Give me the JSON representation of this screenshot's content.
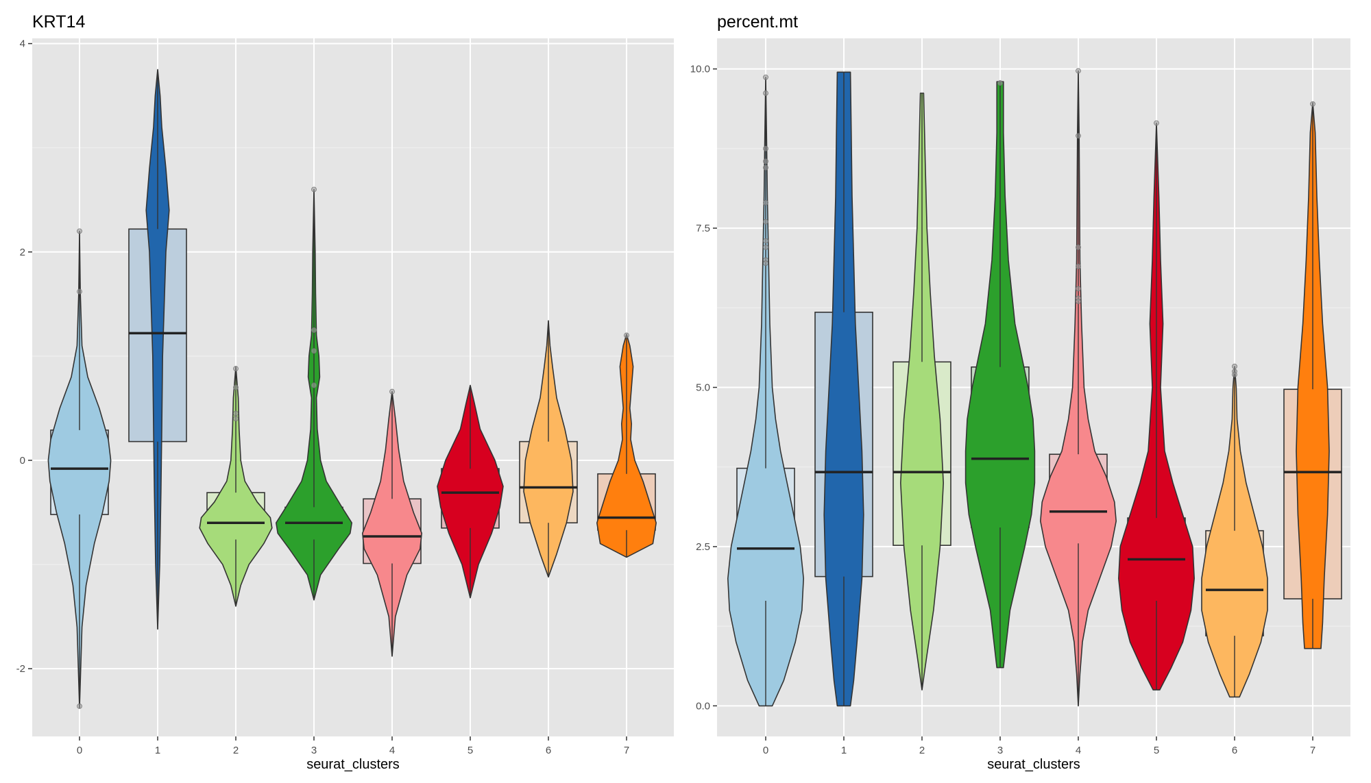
{
  "chart_data": [
    {
      "type": "violin",
      "title": "KRT14",
      "xlabel": "seurat_clusters",
      "ylabel": "",
      "categories": [
        "0",
        "1",
        "2",
        "3",
        "4",
        "5",
        "6",
        "7"
      ],
      "ylim": [
        -2.65,
        4.05
      ],
      "yticks": [
        -2,
        0,
        2,
        4
      ],
      "ytick_labels": [
        "-2",
        "0",
        "2",
        "4"
      ],
      "grid": true,
      "colors": [
        "#9ECAE1",
        "#2166AC",
        "#A6DB7A",
        "#2CA02C",
        "#F7888C",
        "#D7001F",
        "#FDB75F",
        "#FF7F0E"
      ],
      "box_fill_colors": [
        "#D6E3EC",
        "#BCCEDD",
        "#D9EAC9",
        "#C2D9C2",
        "#EAC4C6",
        "#E6B6BB",
        "#EDD8C2",
        "#EDCDB9"
      ],
      "boxes": [
        {
          "q1": -0.52,
          "median": -0.08,
          "q3": 0.29
        },
        {
          "q1": 0.18,
          "median": 1.22,
          "q3": 2.22
        },
        {
          "q1": -0.76,
          "median": -0.6,
          "q3": -0.31
        },
        {
          "q1": -0.76,
          "median": -0.6,
          "q3": -0.45
        },
        {
          "q1": -0.99,
          "median": -0.73,
          "q3": -0.37
        },
        {
          "q1": -0.65,
          "median": -0.31,
          "q3": -0.08
        },
        {
          "q1": -0.6,
          "median": -0.26,
          "q3": 0.18
        },
        {
          "q1": -0.67,
          "median": -0.55,
          "q3": -0.13
        }
      ],
      "violins": [
        {
          "y": [
            -2.38,
            -1.6,
            -1.2,
            -0.8,
            -0.5,
            -0.2,
            0.0,
            0.2,
            0.5,
            0.8,
            1.1,
            1.6,
            2.2
          ],
          "w": [
            0.0,
            0.03,
            0.08,
            0.18,
            0.28,
            0.36,
            0.38,
            0.35,
            0.24,
            0.1,
            0.03,
            0.01,
            0.0
          ]
        },
        {
          "y": [
            -1.62,
            -1.0,
            -0.3,
            0.3,
            1.0,
            1.5,
            2.0,
            2.4,
            2.8,
            3.2,
            3.5,
            3.75
          ],
          "w": [
            0.0,
            0.025,
            0.04,
            0.05,
            0.06,
            0.08,
            0.1,
            0.14,
            0.1,
            0.05,
            0.03,
            0.0
          ]
        },
        {
          "y": [
            -1.4,
            -1.2,
            -1.0,
            -0.8,
            -0.65,
            -0.55,
            -0.4,
            -0.2,
            0.0,
            0.3,
            0.6,
            0.9
          ],
          "w": [
            0.0,
            0.06,
            0.16,
            0.34,
            0.44,
            0.42,
            0.26,
            0.11,
            0.06,
            0.04,
            0.03,
            0.0
          ]
        },
        {
          "y": [
            -1.34,
            -1.1,
            -0.85,
            -0.7,
            -0.6,
            -0.45,
            -0.2,
            0.0,
            0.3,
            0.6,
            0.8,
            1.0,
            1.2,
            1.6,
            2.0,
            2.6
          ],
          "w": [
            0.0,
            0.08,
            0.3,
            0.44,
            0.46,
            0.34,
            0.15,
            0.08,
            0.04,
            0.03,
            0.07,
            0.06,
            0.03,
            0.02,
            0.015,
            0.0
          ]
        },
        {
          "y": [
            -1.88,
            -1.5,
            -1.1,
            -0.85,
            -0.7,
            -0.5,
            -0.2,
            0.1,
            0.4,
            0.66
          ],
          "w": [
            0.0,
            0.04,
            0.18,
            0.34,
            0.36,
            0.26,
            0.14,
            0.08,
            0.04,
            0.0
          ]
        },
        {
          "y": [
            -1.32,
            -1.0,
            -0.7,
            -0.45,
            -0.25,
            0.0,
            0.3,
            0.55,
            0.72
          ],
          "w": [
            0.0,
            0.1,
            0.26,
            0.36,
            0.4,
            0.3,
            0.12,
            0.05,
            0.0
          ]
        },
        {
          "y": [
            -1.12,
            -0.9,
            -0.6,
            -0.3,
            0.0,
            0.3,
            0.6,
            0.9,
            1.1,
            1.34
          ],
          "w": [
            0.0,
            0.1,
            0.22,
            0.3,
            0.28,
            0.2,
            0.1,
            0.05,
            0.02,
            0.0
          ]
        },
        {
          "y": [
            -0.93,
            -0.8,
            -0.6,
            -0.45,
            -0.2,
            0.0,
            0.2,
            0.35,
            0.5,
            0.7,
            0.9,
            1.1,
            1.21
          ],
          "w": [
            0.0,
            0.32,
            0.36,
            0.3,
            0.2,
            0.1,
            0.05,
            0.06,
            0.04,
            0.06,
            0.08,
            0.04,
            0.0
          ]
        }
      ],
      "outliers": [
        {
          "cluster": 0,
          "values": [
            2.2,
            1.62,
            -2.36
          ]
        },
        {
          "cluster": 2,
          "values": [
            0.88,
            0.7,
            0.45,
            0.4
          ]
        },
        {
          "cluster": 3,
          "values": [
            2.6,
            1.25,
            1.05,
            0.72
          ]
        },
        {
          "cluster": 4,
          "values": [
            0.66
          ]
        },
        {
          "cluster": 7,
          "values": [
            1.2
          ]
        }
      ]
    },
    {
      "type": "violin",
      "title": "percent.mt",
      "xlabel": "seurat_clusters",
      "ylabel": "",
      "categories": [
        "0",
        "1",
        "2",
        "3",
        "4",
        "5",
        "6",
        "7"
      ],
      "ylim": [
        -0.48,
        10.48
      ],
      "yticks": [
        0.0,
        2.5,
        5.0,
        7.5,
        10.0
      ],
      "ytick_labels": [
        "0.0",
        "2.5",
        "5.0",
        "7.5",
        "10.0"
      ],
      "grid": true,
      "colors": [
        "#9ECAE1",
        "#2166AC",
        "#A6DB7A",
        "#2CA02C",
        "#F7888C",
        "#D7001F",
        "#FDB75F",
        "#FF7F0E"
      ],
      "box_fill_colors": [
        "#D6E3EC",
        "#BCCEDD",
        "#D9EAC9",
        "#C2D9C2",
        "#EAC4C6",
        "#E6B6BB",
        "#EDD8C2",
        "#EDCDB9"
      ],
      "boxes": [
        {
          "q1": 1.65,
          "median": 2.47,
          "q3": 3.73
        },
        {
          "q1": 2.03,
          "median": 3.67,
          "q3": 6.18
        },
        {
          "q1": 2.52,
          "median": 3.67,
          "q3": 5.4
        },
        {
          "q1": 2.8,
          "median": 3.88,
          "q3": 5.32
        },
        {
          "q1": 2.55,
          "median": 3.05,
          "q3": 3.95
        },
        {
          "q1": 1.65,
          "median": 2.3,
          "q3": 2.95
        },
        {
          "q1": 1.1,
          "median": 1.82,
          "q3": 2.75
        },
        {
          "q1": 1.68,
          "median": 3.67,
          "q3": 4.97
        }
      ],
      "violins": [
        {
          "y": [
            0.0,
            0.4,
            1.0,
            1.5,
            2.0,
            2.5,
            3.0,
            3.5,
            4.0,
            4.5,
            5.0,
            6.0,
            7.0,
            8.0,
            9.0,
            9.87
          ],
          "w": [
            0.08,
            0.22,
            0.36,
            0.44,
            0.46,
            0.42,
            0.34,
            0.26,
            0.18,
            0.12,
            0.08,
            0.05,
            0.035,
            0.02,
            0.01,
            0.0
          ]
        },
        {
          "y": [
            0.0,
            0.4,
            1.0,
            2.0,
            3.0,
            4.0,
            5.0,
            6.0,
            7.0,
            8.0,
            9.0,
            9.95
          ],
          "w": [
            0.08,
            0.12,
            0.16,
            0.22,
            0.24,
            0.22,
            0.18,
            0.14,
            0.12,
            0.1,
            0.09,
            0.08
          ]
        },
        {
          "y": [
            0.25,
            0.8,
            1.5,
            2.5,
            3.5,
            4.5,
            5.5,
            6.5,
            7.5,
            8.5,
            9.62
          ],
          "w": [
            0.0,
            0.06,
            0.14,
            0.22,
            0.26,
            0.22,
            0.15,
            0.1,
            0.06,
            0.04,
            0.02
          ]
        },
        {
          "y": [
            0.6,
            1.5,
            2.5,
            3.0,
            3.5,
            4.0,
            4.5,
            5.0,
            6.0,
            7.0,
            8.0,
            9.0,
            9.8
          ],
          "w": [
            0.04,
            0.12,
            0.3,
            0.38,
            0.42,
            0.42,
            0.4,
            0.34,
            0.18,
            0.1,
            0.06,
            0.04,
            0.04
          ]
        },
        {
          "y": [
            0.0,
            0.5,
            1.0,
            1.5,
            2.0,
            2.5,
            2.9,
            3.2,
            3.6,
            4.0,
            4.5,
            5.0,
            6.0,
            7.0,
            8.0,
            9.0,
            9.97
          ],
          "w": [
            0.0,
            0.02,
            0.05,
            0.12,
            0.26,
            0.4,
            0.46,
            0.44,
            0.34,
            0.2,
            0.12,
            0.07,
            0.04,
            0.02,
            0.015,
            0.01,
            0.0
          ]
        },
        {
          "y": [
            0.25,
            0.6,
            1.0,
            1.5,
            2.0,
            2.5,
            3.0,
            3.5,
            4.0,
            5.0,
            6.0,
            7.0,
            8.0,
            9.15
          ],
          "w": [
            0.04,
            0.18,
            0.32,
            0.42,
            0.46,
            0.44,
            0.32,
            0.2,
            0.1,
            0.05,
            0.08,
            0.05,
            0.03,
            0.0
          ]
        },
        {
          "y": [
            0.14,
            0.5,
            1.0,
            1.5,
            2.0,
            2.5,
            3.0,
            3.5,
            4.0,
            4.5,
            5.0,
            5.33
          ],
          "w": [
            0.06,
            0.18,
            0.32,
            0.4,
            0.4,
            0.34,
            0.24,
            0.14,
            0.07,
            0.03,
            0.02,
            0.0
          ]
        },
        {
          "y": [
            0.9,
            1.3,
            2.0,
            3.0,
            4.0,
            5.0,
            6.0,
            7.0,
            8.0,
            9.0,
            9.47
          ],
          "w": [
            0.1,
            0.12,
            0.14,
            0.18,
            0.2,
            0.18,
            0.12,
            0.08,
            0.05,
            0.03,
            0.0
          ]
        }
      ],
      "outliers": [
        {
          "cluster": 0,
          "values": [
            9.87,
            9.62,
            8.75,
            8.55,
            8.45,
            7.9,
            7.6,
            7.3,
            7.2,
            7.0,
            6.95
          ]
        },
        {
          "cluster": 3,
          "values": [
            9.78
          ]
        },
        {
          "cluster": 4,
          "values": [
            9.97,
            8.95,
            7.2,
            6.9,
            6.55,
            6.4,
            6.35
          ]
        },
        {
          "cluster": 5,
          "values": [
            9.15
          ]
        },
        {
          "cluster": 6,
          "values": [
            5.33,
            5.25,
            5.2
          ]
        },
        {
          "cluster": 7,
          "values": [
            9.45
          ]
        }
      ]
    }
  ]
}
